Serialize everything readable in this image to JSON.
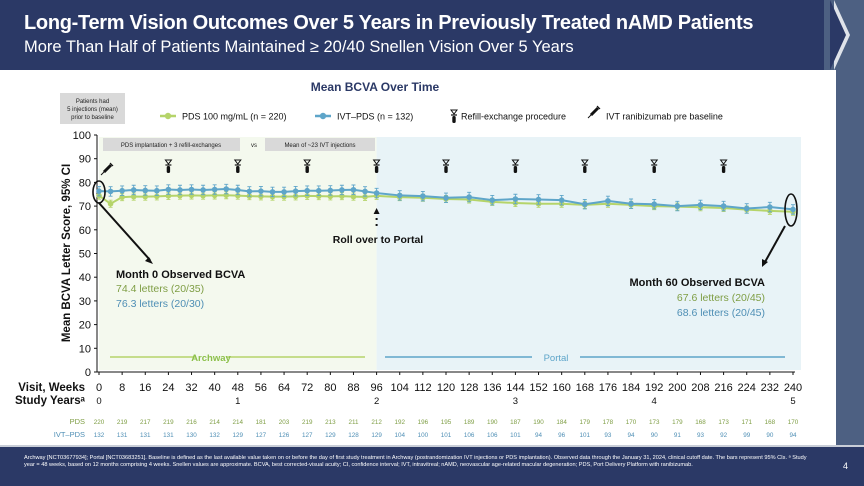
{
  "header": {
    "title": "Long-Term Vision Outcomes Over 5 Years in Previously Treated nAMD Patients",
    "subtitle": "More Than Half of Patients Maintained ≥ 20/40 Snellen Vision Over 5 Years"
  },
  "footer": {
    "text": "Archway [NCT03677934]; Portal [NCT03683251]. Baseline is defined as the last available value taken on or before the day of first study treatment in Archway (postrandomization IVT injections or PDS implantation). Observed data through the January 31, 2024, clinical cutoff date. The bars represent 95% CIs. ᵃ Study year = 48 weeks, based on 12 months comprising 4 weeks. Snellen values are approximate. BCVA, best corrected-visual acuity; CI, confidence interval; IVT, intravitreal; nAMD, neovascular age-related macular degeneration; PDS, Port Delivery Platform with ranibizumab.",
    "page_number": "4"
  },
  "colors": {
    "pds": "#b5d46a",
    "ivt": "#5ea5c9",
    "pds_text": "#7f9e45",
    "ivt_text": "#4f8fb5",
    "archway_bg": "#f4f9ee",
    "portal_bg": "#e8f3f7",
    "navy": "#2b3966"
  },
  "chart_data": {
    "type": "line",
    "title": "Mean BCVA Over Time",
    "ylabel": "Mean BCVA Letter Score, 95% CI",
    "xlabel": "Visit, Weeks",
    "ylim": [
      0,
      100
    ],
    "yticks": [
      0,
      10,
      20,
      30,
      40,
      50,
      60,
      70,
      80,
      90,
      100
    ],
    "xlim": [
      0,
      240
    ],
    "xticks": [
      0,
      8,
      16,
      24,
      32,
      40,
      48,
      56,
      64,
      72,
      80,
      88,
      96,
      104,
      112,
      120,
      128,
      136,
      144,
      152,
      160,
      168,
      176,
      184,
      192,
      200,
      208,
      216,
      224,
      232,
      240
    ],
    "study_years_label": "Study Yearsᵃ",
    "study_years": [
      {
        "week": 0,
        "label": "0"
      },
      {
        "week": 48,
        "label": "1"
      },
      {
        "week": 96,
        "label": "2"
      },
      {
        "week": 144,
        "label": "3"
      },
      {
        "week": 192,
        "label": "4"
      },
      {
        "week": 240,
        "label": "5"
      }
    ],
    "x": [
      0,
      4,
      8,
      12,
      16,
      20,
      24,
      28,
      32,
      36,
      40,
      44,
      48,
      52,
      56,
      60,
      64,
      68,
      72,
      76,
      80,
      84,
      88,
      92,
      96,
      104,
      112,
      120,
      128,
      136,
      144,
      152,
      160,
      168,
      176,
      184,
      192,
      200,
      208,
      216,
      224,
      232,
      240
    ],
    "series": [
      {
        "name": "PDS 100 mg/mL (n = 220)",
        "color": "#b5d46a",
        "ci_half_width": 1.5,
        "values": [
          74.4,
          71,
          73.8,
          74,
          74,
          74.1,
          74.3,
          74.4,
          74.5,
          74.4,
          74.5,
          74.6,
          74.4,
          74.2,
          74.1,
          74,
          74,
          74.1,
          74.3,
          74.2,
          74.1,
          74.2,
          74,
          73.9,
          74.3,
          73.8,
          73.5,
          73,
          72.8,
          71.8,
          71.3,
          71,
          71,
          70.5,
          71,
          70.5,
          70,
          69.8,
          69.5,
          69.2,
          68.5,
          68,
          67.6
        ]
      },
      {
        "name": "IVT–PDS (n = 132)",
        "color": "#5ea5c9",
        "ci_half_width": 2,
        "values": [
          76.3,
          76.2,
          76.5,
          76.8,
          76.6,
          76.5,
          77,
          76.8,
          77,
          76.8,
          77,
          77.2,
          76.8,
          76.2,
          76.3,
          76,
          76,
          76.3,
          76.5,
          76.5,
          76.6,
          76.8,
          76.9,
          76.2,
          75.5,
          74.5,
          74.2,
          73.5,
          73.8,
          72.5,
          73,
          72.8,
          72.5,
          70.8,
          72.2,
          71,
          70.8,
          70,
          70.5,
          70,
          69,
          69.6,
          68.6
        ]
      }
    ],
    "legend": {
      "refill": "Refill-exchange procedure",
      "ivt_pre": "IVT ranibizumab pre baseline",
      "position": "top"
    },
    "refill_weeks": [
      24,
      48,
      72,
      96,
      120,
      144,
      168,
      192,
      216
    ],
    "annotations": {
      "patients_box": [
        "Patients had",
        "5 injections (mean)",
        "prior to baseline"
      ],
      "pds_phase": "PDS implantation + 3 refill-exchanges",
      "vs": "vs",
      "ivt_phase": "Mean of ~23 IVT injections",
      "rollover": "Roll over to Portal",
      "month0": {
        "title": "Month 0 Observed BCVA",
        "pds": "74.4 letters (20/35)",
        "ivt": "76.3 letters (20/30)"
      },
      "month60": {
        "title": "Month 60 Observed BCVA",
        "pds": "67.6 letters (20/45)",
        "ivt": "68.6 letters (20/45)"
      },
      "archway": "Archway",
      "portal": "Portal"
    },
    "at_risk": {
      "pds_label": "PDS",
      "ivt_label": "IVT–PDS",
      "pds": [
        220,
        219,
        217,
        219,
        216,
        214,
        214,
        181,
        203,
        219,
        213,
        211,
        212,
        192,
        196,
        195,
        189,
        190,
        187,
        190,
        184,
        179,
        178,
        170,
        173,
        179,
        168,
        173,
        171,
        168,
        170
      ],
      "ivt": [
        132,
        131,
        131,
        131,
        130,
        132,
        129,
        127,
        126,
        127,
        129,
        128,
        129,
        104,
        100,
        101,
        106,
        106,
        101,
        94,
        96,
        101,
        93,
        94,
        90,
        91,
        93,
        92,
        99,
        90,
        94
      ]
    }
  }
}
